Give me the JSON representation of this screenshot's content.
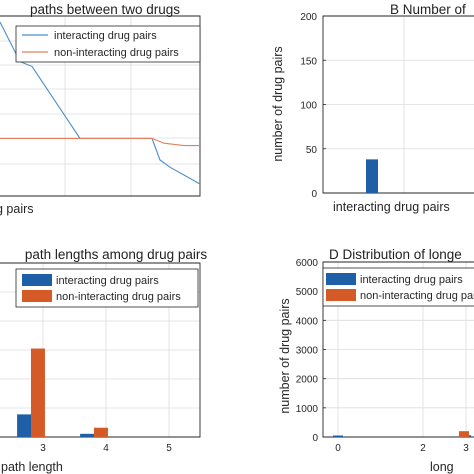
{
  "chart_data": [
    {
      "type": "line",
      "title": "paths between two drugs",
      "xlabel": "g pairs",
      "series": [
        {
          "name": "interacting drug pairs",
          "color": "#4a8fc9",
          "x": [
            0,
            0.1,
            0.16,
            0.28,
            0.4,
            0.52,
            0.64,
            0.76,
            0.8,
            0.85,
            1.0
          ],
          "y": [
            0.95,
            0.62,
            0.58,
            0.28,
            -0.02,
            -0.02,
            -0.02,
            -0.02,
            -0.2,
            -0.26,
            -0.4
          ]
        },
        {
          "name": "non-interacting drug pairs",
          "color": "#e08060",
          "x": [
            0,
            0.76,
            0.82,
            0.92,
            1.0
          ],
          "y": [
            -0.02,
            -0.02,
            -0.06,
            -0.08,
            -0.08
          ]
        }
      ],
      "xlim": [
        0,
        1
      ],
      "ylim": [
        -0.5,
        1.0
      ]
    },
    {
      "type": "bar",
      "title": "B Number of",
      "ylabel": "number of drug pairs",
      "categories": [
        "interacting drug pairs"
      ],
      "series": [
        {
          "name": "interacting drug pairs",
          "color": "#1f5fa8",
          "values": [
            38
          ]
        }
      ],
      "yticks": [
        "0",
        "50",
        "100",
        "150",
        "200"
      ],
      "ylim": [
        0,
        200
      ]
    },
    {
      "type": "bar",
      "title": "path lengths among drug pairs",
      "xlabel": "path length",
      "xticks": [
        "3",
        "4",
        "5"
      ],
      "series": [
        {
          "name": "interacting drug pairs",
          "color": "#1f5fa8",
          "x": [
            2.7,
            3.7
          ],
          "values": [
            780,
            110
          ]
        },
        {
          "name": "non-interacting drug pairs",
          "color": "#d45a28",
          "x": [
            2.92,
            3.92
          ],
          "values": [
            3050,
            320
          ]
        }
      ],
      "ylim": [
        0,
        6000
      ]
    },
    {
      "type": "bar",
      "title": "D Distribution of longe",
      "xlabel": "long",
      "ylabel": "number of drug pairs",
      "yticks": [
        "0",
        "1000",
        "2000",
        "3000",
        "4000",
        "5000",
        "6000"
      ],
      "xticks": [
        "0",
        "2",
        "3"
      ],
      "series": [
        {
          "name": "interacting drug pairs",
          "color": "#1f5fa8",
          "x": [
            0,
            3
          ],
          "values": [
            20,
            60
          ]
        },
        {
          "name": "non-interacting drug pairs",
          "color": "#d45a28",
          "x": [
            2.95
          ],
          "values": [
            200
          ]
        }
      ],
      "ylim": [
        0,
        6000
      ]
    }
  ]
}
